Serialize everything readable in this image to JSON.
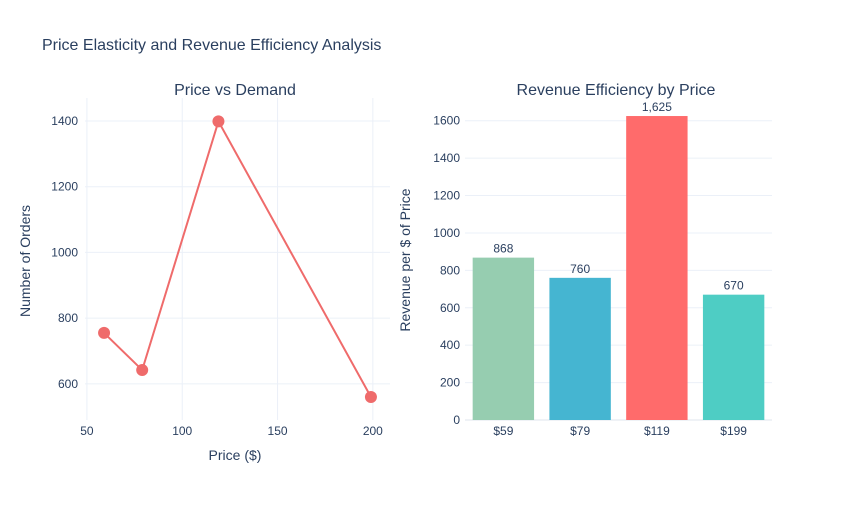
{
  "figure": {
    "title": "Price Elasticity and Revenue Efficiency Analysis"
  },
  "chart_data": [
    {
      "type": "line",
      "title": "Price vs Demand",
      "xlabel": "Price ($)",
      "ylabel": "Number of Orders",
      "x": [
        59,
        79,
        119,
        199
      ],
      "y": [
        755,
        642,
        1399,
        560
      ],
      "xlim": [
        49,
        209
      ],
      "ylim": [
        490,
        1470
      ],
      "xticks": [
        50,
        100,
        150,
        200
      ],
      "yticks": [
        600,
        800,
        1000,
        1200,
        1400
      ],
      "grid": true,
      "color": "#ef6b6b"
    },
    {
      "type": "bar",
      "title": "Revenue Efficiency by Price",
      "xlabel": "",
      "ylabel": "Revenue per $ of Price",
      "categories": [
        "$59",
        "$79",
        "$119",
        "$199"
      ],
      "values": [
        868,
        760,
        1625,
        670
      ],
      "data_labels": [
        "868",
        "760",
        "1,625",
        "670"
      ],
      "colors": [
        "#96cdb0",
        "#45b5d1",
        "#ff6b6b",
        "#4ecdc4"
      ],
      "ylim": [
        0,
        1700
      ],
      "yticks": [
        0,
        200,
        400,
        600,
        800,
        1000,
        1200,
        1400,
        1600
      ],
      "grid": true
    }
  ]
}
